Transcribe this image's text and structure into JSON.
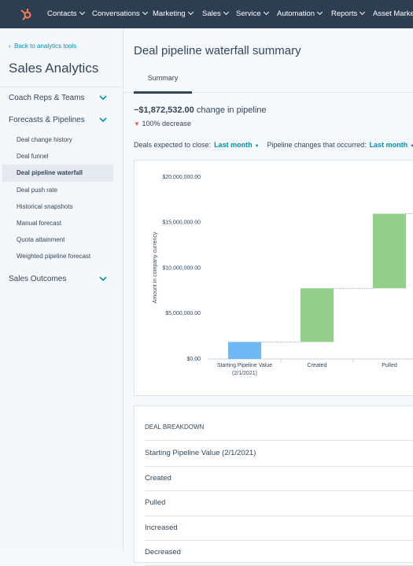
{
  "nav": {
    "items": [
      "Contacts",
      "Conversations",
      "Marketing",
      "Sales",
      "Service",
      "Automation",
      "Reports",
      "Asset Marketplace"
    ]
  },
  "sidebar": {
    "back_link": "Back to analytics tools",
    "title": "Sales Analytics",
    "sections": [
      {
        "label": "Coach Reps & Teams",
        "items": []
      },
      {
        "label": "Forecasts & Pipelines",
        "items": [
          "Deal change history",
          "Deal funnel",
          "Deal pipeline waterfall",
          "Deal push rate",
          "Historical snapshots",
          "Manual forecast",
          "Quota attainment",
          "Weighted pipeline forecast"
        ]
      },
      {
        "label": "Sales Outcomes",
        "items": []
      }
    ]
  },
  "header": {
    "title": "Deal pipeline waterfall summary",
    "tab": "Summary"
  },
  "summary": {
    "change": "−$1,872,532.00",
    "change_text": "change in pipeline",
    "decrease": "100% decrease"
  },
  "filters": [
    {
      "label": "Deals expected to close:",
      "value": "Last month"
    },
    {
      "label": "Pipeline changes that occurred:",
      "value": "Last month"
    }
  ],
  "chart_data": {
    "type": "waterfall",
    "y_label": "Amount in company currency",
    "categories": [
      "Starting Pipeline Value (2/1/2021)",
      "Created",
      "Pulled"
    ],
    "values": [
      1872532,
      5900000,
      8200000
    ],
    "colors": [
      "#6db8f5",
      "#93cf8b",
      "#93cf8b"
    ],
    "ylim": [
      0,
      20000000
    ],
    "yticks": [
      {
        "value": 0,
        "label": "$0.00"
      },
      {
        "value": 5000000,
        "label": "$5,000,000.00"
      },
      {
        "value": 10000000,
        "label": "$10,000,000.00"
      },
      {
        "value": 15000000,
        "label": "$15,000,000.00"
      },
      {
        "value": 20000000,
        "label": "$20,000,000.00"
      }
    ]
  },
  "breakdown": {
    "title": "DEAL BREAKDOWN",
    "rows": [
      "Starting Pipeline Value (2/1/2021)",
      "Created",
      "Pulled",
      "Increased",
      "Decreased"
    ]
  }
}
